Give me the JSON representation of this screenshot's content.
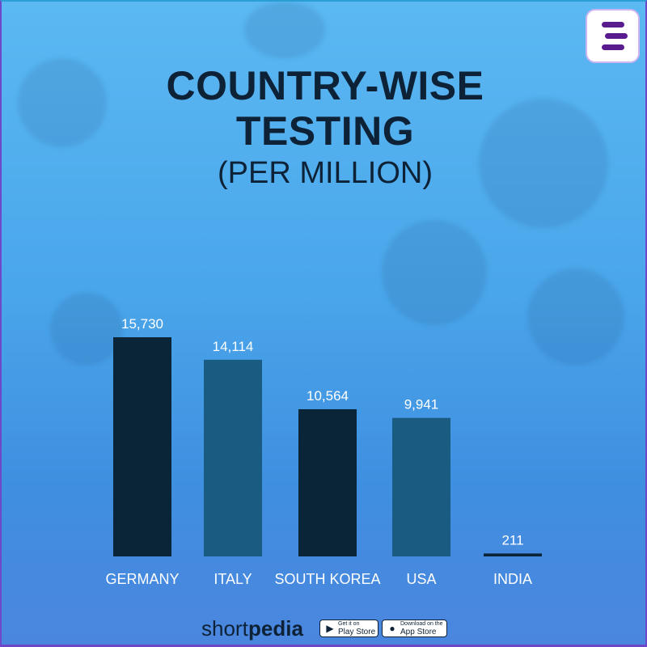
{
  "title_line1": "COUNTRY-WISE",
  "title_line2": "TESTING",
  "subtitle": "(PER MILLION)",
  "brand": {
    "short": "short",
    "pedia": "pedia"
  },
  "stores": {
    "play": {
      "small": "Get it on",
      "big": "Play Store",
      "icon": "play-triangle-icon"
    },
    "app": {
      "small": "Download on the",
      "big": "App Store",
      "icon": "apple-icon"
    }
  },
  "colors": {
    "dark_bar": "#0a2538",
    "light_bar": "#1a5b82",
    "title": "#0d2236",
    "logo_purple": "#5a1b8f"
  },
  "chart_data": {
    "type": "bar",
    "title": "COUNTRY-WISE TESTING",
    "subtitle": "(PER MILLION)",
    "categories": [
      "GERMANY",
      "ITALY",
      "SOUTH KOREA",
      "USA",
      "INDIA"
    ],
    "values": [
      15730,
      14114,
      10564,
      9941,
      211
    ],
    "value_labels": [
      "15,730",
      "14,114",
      "10,564",
      "9,941",
      "211"
    ],
    "bar_colors": [
      "#0a2538",
      "#1a5b82",
      "#0a2538",
      "#1a5b82",
      "#0a2538"
    ],
    "xlabel": "",
    "ylabel": "",
    "ylim": [
      0,
      15730
    ],
    "grid": false,
    "legend": "none"
  }
}
